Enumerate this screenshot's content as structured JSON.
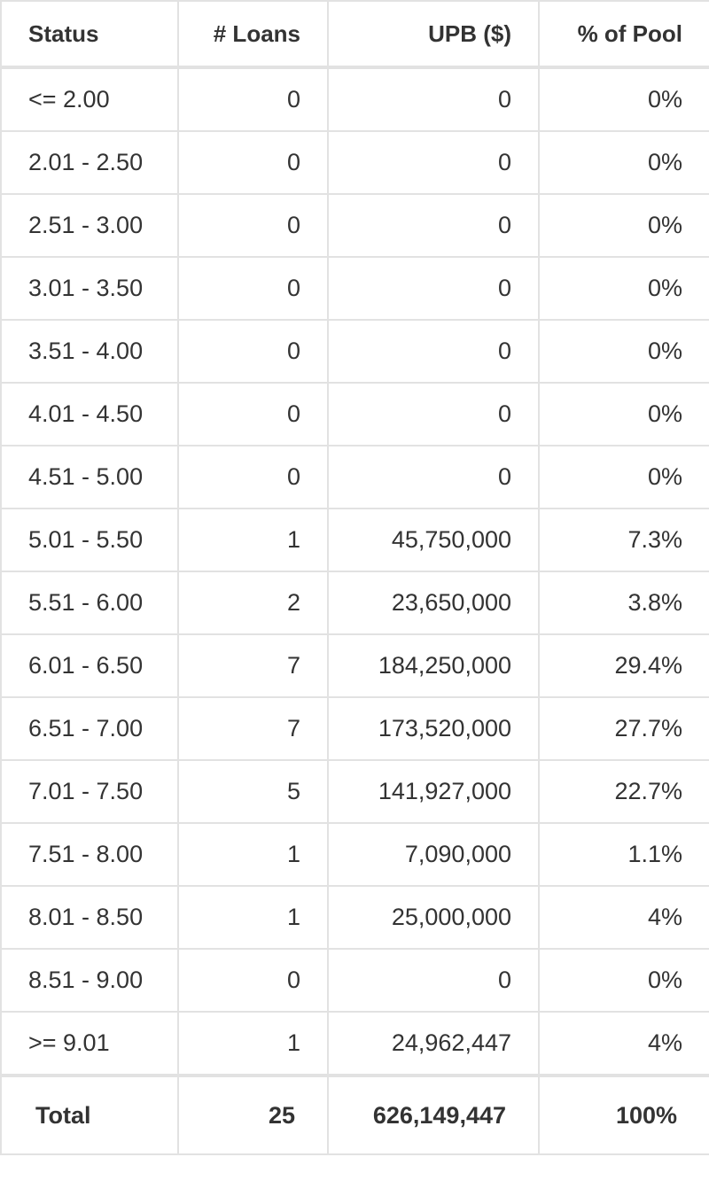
{
  "table": {
    "header": [
      "Status",
      "# Loans",
      "UPB ($)",
      "% of Pool"
    ],
    "rows": [
      [
        "<= 2.00",
        "0",
        "0",
        "0%"
      ],
      [
        "2.01 - 2.50",
        "0",
        "0",
        "0%"
      ],
      [
        "2.51 - 3.00",
        "0",
        "0",
        "0%"
      ],
      [
        "3.01 - 3.50",
        "0",
        "0",
        "0%"
      ],
      [
        "3.51 - 4.00",
        "0",
        "0",
        "0%"
      ],
      [
        "4.01 - 4.50",
        "0",
        "0",
        "0%"
      ],
      [
        "4.51 - 5.00",
        "0",
        "0",
        "0%"
      ],
      [
        "5.01 - 5.50",
        "1",
        "45,750,000",
        "7.3%"
      ],
      [
        "5.51 - 6.00",
        "2",
        "23,650,000",
        "3.8%"
      ],
      [
        "6.01 - 6.50",
        "7",
        "184,250,000",
        "29.4%"
      ],
      [
        "6.51 - 7.00",
        "7",
        "173,520,000",
        "27.7%"
      ],
      [
        "7.01 - 7.50",
        "5",
        "141,927,000",
        "22.7%"
      ],
      [
        "7.51 - 8.00",
        "1",
        "7,090,000",
        "1.1%"
      ],
      [
        "8.01 - 8.50",
        "1",
        "25,000,000",
        "4%"
      ],
      [
        "8.51 - 9.00",
        "0",
        "0",
        "0%"
      ],
      [
        ">= 9.01",
        "1",
        "24,962,447",
        "4%"
      ]
    ],
    "footer": [
      "Total",
      "25",
      "626,149,447",
      "100%"
    ]
  }
}
